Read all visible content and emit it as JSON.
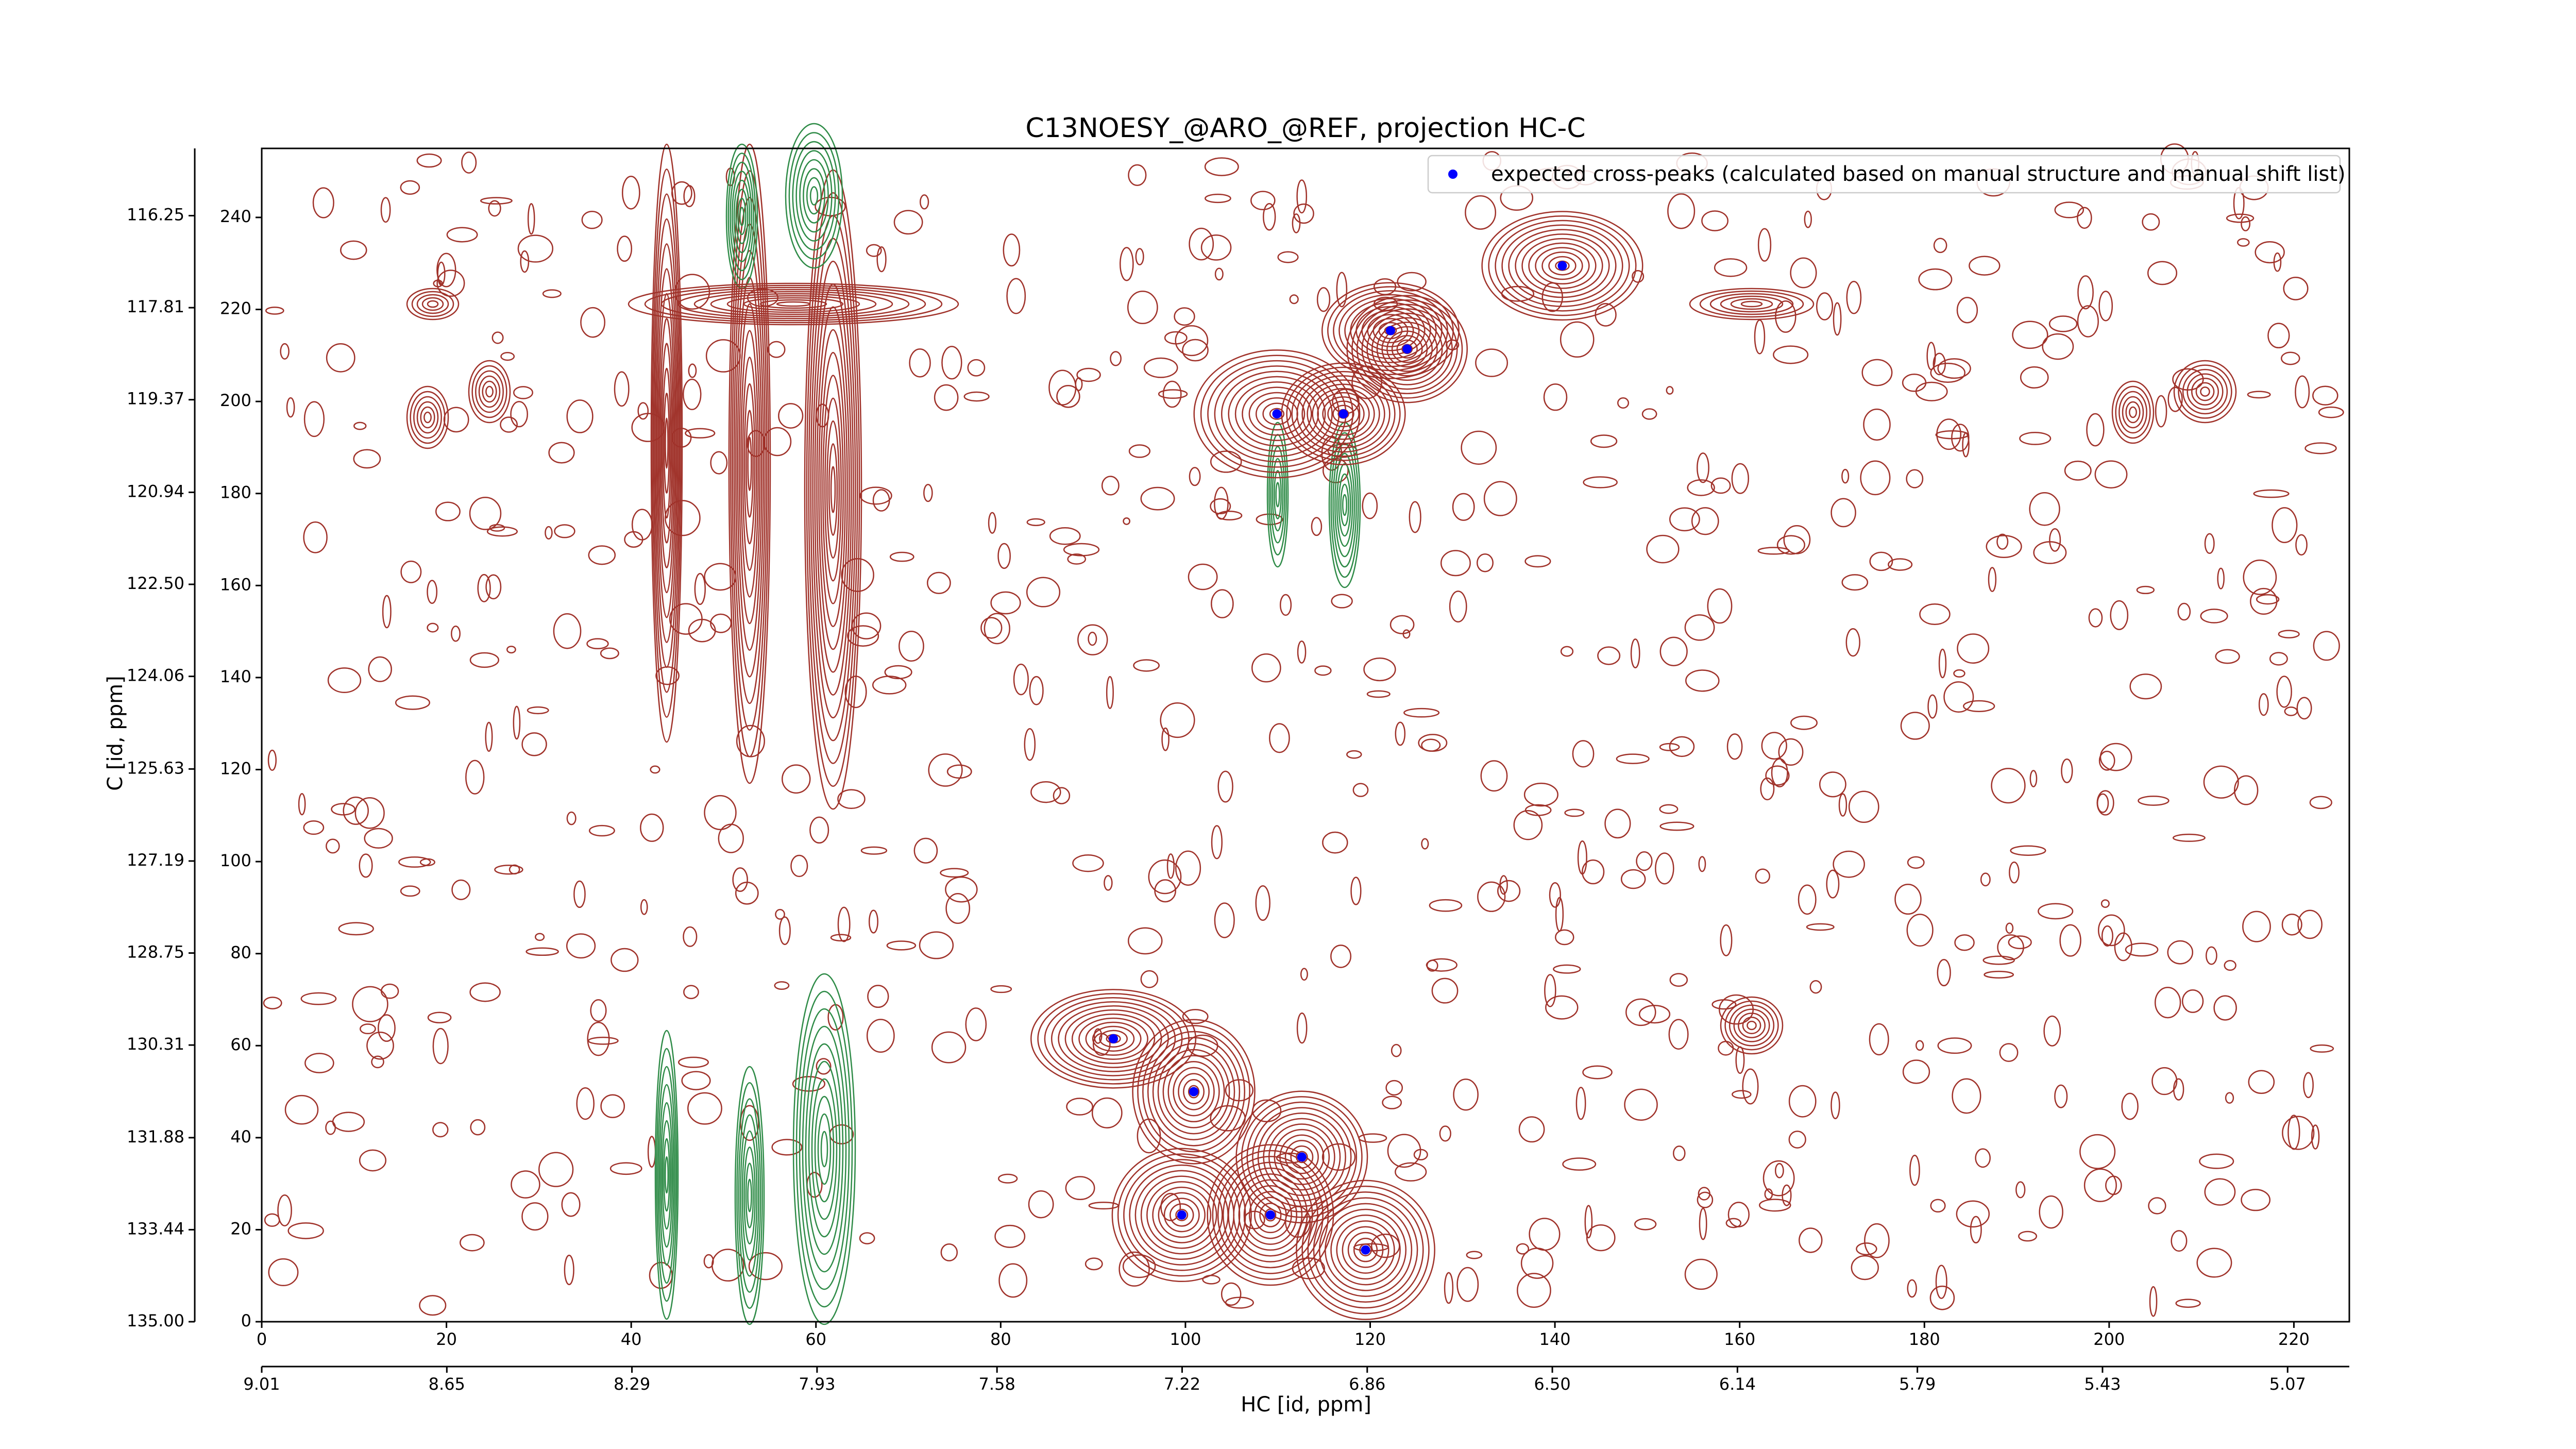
{
  "chart_data": {
    "type": "scatter",
    "title": "C13NOESY_@ARO_@REF, projection HC-C",
    "x_label": "HC [id, ppm]",
    "y_label": "C [id, ppm]",
    "series": [
      {
        "name": "expected cross-peaks (calculated based on manual structure and manual shift list)",
        "color": "#0000ff",
        "x": [
          140.8,
          122.2,
          124.0,
          109.9,
          117.1,
          92.2,
          100.9,
          112.6,
          99.6,
          109.2,
          119.5
        ],
        "values": [
          229.5,
          215.4,
          211.4,
          197.3,
          197.3,
          61.5,
          50.0,
          35.8,
          23.2,
          23.2,
          15.6
        ]
      }
    ],
    "xlim": [
      0,
      226
    ],
    "xticks": [
      0,
      20,
      40,
      60,
      80,
      100,
      120,
      140,
      160,
      180,
      200,
      220
    ],
    "ylim": [
      0,
      255
    ],
    "yticks": [
      0,
      20,
      40,
      60,
      80,
      100,
      120,
      140,
      160,
      180,
      200,
      220,
      240
    ],
    "x2lim": [
      9.01,
      4.95
    ],
    "x2ticks": [
      9.01,
      8.65,
      8.29,
      7.93,
      7.58,
      7.22,
      6.86,
      {
        "value": 6.5,
        "label": "6.50"
      },
      6.14,
      5.79,
      5.43,
      5.07
    ],
    "y2lim": [
      135,
      115.11
    ],
    "y2ticks": [
      {
        "value": 135,
        "label": "135.00"
      },
      133.44,
      131.88,
      130.31,
      128.75,
      127.19,
      125.63,
      124.06,
      {
        "value": 122.5,
        "label": "122.50"
      },
      120.94,
      119.37,
      117.81,
      116.25
    ],
    "legend": "upper right"
  }
}
